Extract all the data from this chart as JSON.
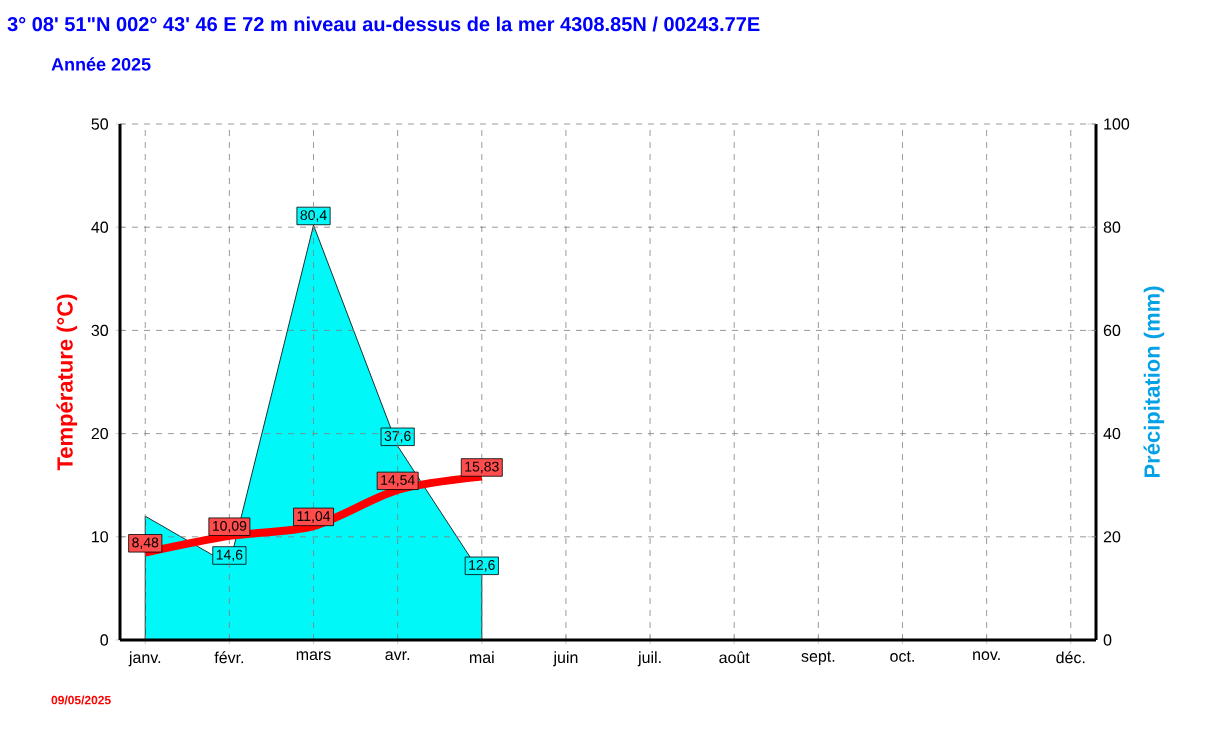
{
  "chart_data": {
    "type": "line",
    "title": "3° 08' 51\"N  002° 43' 46 E      72 m niveau au-dessus de la mer          4308.85N / 00243.77E",
    "subtitle": "Année  2025",
    "ylabel": "Température  (°C)",
    "y2label": "Précipitation  (mm)",
    "categories": [
      "janv.",
      "févr.",
      "mars",
      "avr.",
      "mai",
      "juin",
      "juil.",
      "août",
      "sept.",
      "oct.",
      "nov.",
      "déc."
    ],
    "series": [
      {
        "type": "area",
        "axis": "y2",
        "color": "#00f8f8",
        "values": [
          24,
          14.6,
          80.4,
          37.6,
          12.6,
          null,
          null,
          null,
          null,
          null,
          null,
          null
        ],
        "value_labels": [
          null,
          "14,6",
          "80,4",
          "37,6",
          "12,6",
          null,
          null,
          null,
          null,
          null,
          null,
          null
        ]
      },
      {
        "color": "#ff0000",
        "values": [
          8.48,
          10.09,
          11.04,
          14.54,
          15.83,
          null,
          null,
          null,
          null,
          null,
          null,
          null
        ],
        "value_labels": [
          "8,48",
          "10,09",
          "11,04",
          "14,54",
          "15,83",
          null,
          null,
          null,
          null,
          null,
          null,
          null
        ]
      }
    ],
    "ylim": [
      0,
      50
    ],
    "yticks": [
      0,
      10,
      20,
      30,
      40,
      50
    ],
    "y2lim": [
      0,
      100
    ],
    "y2ticks": [
      0,
      20,
      40,
      60,
      80,
      100
    ],
    "grid": true,
    "annotations": [
      "09/05/2025"
    ]
  }
}
